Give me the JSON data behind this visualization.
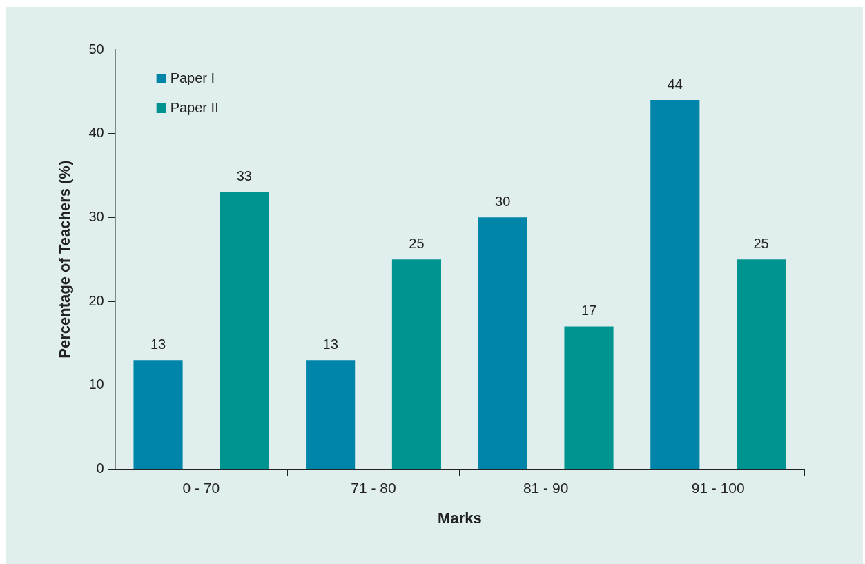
{
  "chart_data": {
    "type": "bar",
    "xlabel": "Marks",
    "ylabel": "Percentage of Teachers (%)",
    "categories": [
      "0 - 70",
      "71 - 80",
      "81 - 90",
      "91 - 100"
    ],
    "series": [
      {
        "name": "Paper I",
        "color": "#0085aa",
        "values": [
          13,
          13,
          30,
          44
        ]
      },
      {
        "name": "Paper II",
        "color": "#009490",
        "values": [
          33,
          25,
          17,
          25
        ]
      }
    ],
    "ylim": [
      0,
      50
    ],
    "yticks": [
      0,
      10,
      20,
      30,
      40,
      50
    ],
    "grid": false,
    "legend": "top left",
    "data_labels": true
  }
}
